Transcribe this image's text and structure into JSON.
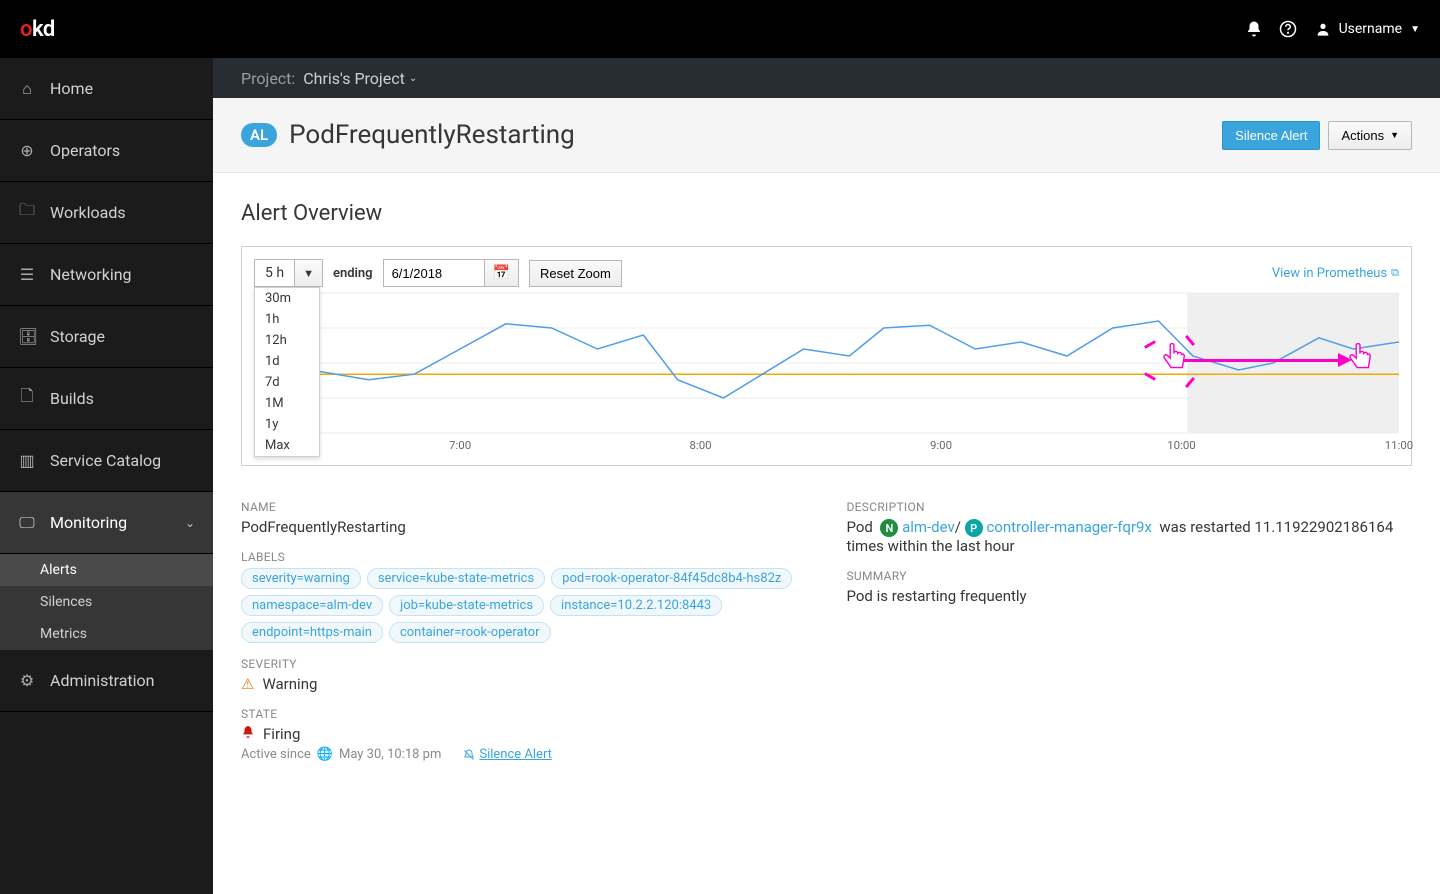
{
  "topbar": {
    "logo_o": "o",
    "logo_kd": "kd",
    "username": "Username"
  },
  "sidebar": {
    "items": [
      {
        "icon": "home",
        "label": "Home"
      },
      {
        "icon": "bolt",
        "label": "Operators"
      },
      {
        "icon": "folder",
        "label": "Workloads"
      },
      {
        "icon": "net",
        "label": "Networking"
      },
      {
        "icon": "db",
        "label": "Storage"
      },
      {
        "icon": "hammer",
        "label": "Builds"
      },
      {
        "icon": "book",
        "label": "Service Catalog"
      },
      {
        "icon": "monitor",
        "label": "Monitoring"
      },
      {
        "icon": "gear",
        "label": "Administration"
      }
    ],
    "monitoring_children": [
      {
        "label": "Alerts"
      },
      {
        "label": "Silences"
      },
      {
        "label": "Metrics"
      }
    ]
  },
  "project": {
    "label": "Project:",
    "name": "Chris's Project"
  },
  "header": {
    "badge": "AL",
    "title": "PodFrequentlyRestarting",
    "silence_btn": "Silence Alert",
    "actions_btn": "Actions"
  },
  "overview": {
    "title": "Alert Overview",
    "time_range_value": "5 h",
    "time_range_options": [
      "30m",
      "1h",
      "12h",
      "1d",
      "7d",
      "1M",
      "1y",
      "Max"
    ],
    "ending_label": "ending",
    "ending_date": "6/1/2018",
    "reset_zoom": "Reset Zoom",
    "view_prom": "View in Prometheus",
    "chart": {
      "type": "line",
      "x_ticks": [
        "7:00",
        "8:00",
        "9:00",
        "10:00",
        "11:00"
      ],
      "x_tick_positions": [
        0.18,
        0.39,
        0.6,
        0.81,
        1.0
      ],
      "threshold_y": 0.58,
      "threshold_color": "#f0ab00",
      "line_color": "#519de9",
      "grid_color": "#ededed",
      "selection_start": 0.815,
      "selection_end": 1.0,
      "selection_bg": "#efefef",
      "series": [
        [
          0.0,
          0.6
        ],
        [
          0.05,
          0.55
        ],
        [
          0.1,
          0.62
        ],
        [
          0.14,
          0.58
        ],
        [
          0.18,
          0.4
        ],
        [
          0.22,
          0.22
        ],
        [
          0.26,
          0.25
        ],
        [
          0.3,
          0.4
        ],
        [
          0.34,
          0.3
        ],
        [
          0.37,
          0.62
        ],
        [
          0.41,
          0.75
        ],
        [
          0.44,
          0.6
        ],
        [
          0.48,
          0.4
        ],
        [
          0.52,
          0.45
        ],
        [
          0.55,
          0.25
        ],
        [
          0.59,
          0.23
        ],
        [
          0.63,
          0.4
        ],
        [
          0.67,
          0.35
        ],
        [
          0.71,
          0.45
        ],
        [
          0.75,
          0.25
        ],
        [
          0.79,
          0.2
        ],
        [
          0.82,
          0.45
        ],
        [
          0.86,
          0.55
        ],
        [
          0.89,
          0.5
        ],
        [
          0.93,
          0.32
        ],
        [
          0.96,
          0.4
        ],
        [
          1.0,
          0.35
        ]
      ]
    }
  },
  "details": {
    "name_label": "NAME",
    "name_value": "PodFrequentlyRestarting",
    "labels_label": "LABELS",
    "tags": [
      "severity=warning",
      "service=kube-state-metrics",
      "pod=rook-operator-84f45dc8b4-hs82z",
      "namespace=alm-dev",
      "job=kube-state-metrics",
      "instance=10.2.2.120:8443",
      "endpoint=https-main",
      "container=rook-operator"
    ],
    "severity_label": "SEVERITY",
    "severity_value": "Warning",
    "state_label": "STATE",
    "state_value": "Firing",
    "active_since_label": "Active since",
    "active_since_value": "May 30, 10:18 pm",
    "silence_link": "Silence Alert",
    "desc_label": "DESCRIPTION",
    "desc_prefix": "Pod",
    "desc_ns": "alm-dev",
    "desc_pod": "controller-manager-fqr9x",
    "desc_suffix": "was restarted 11.11922902186164 times within the last hour",
    "summary_label": "SUMMARY",
    "summary_value": "Pod is restarting frequently"
  }
}
